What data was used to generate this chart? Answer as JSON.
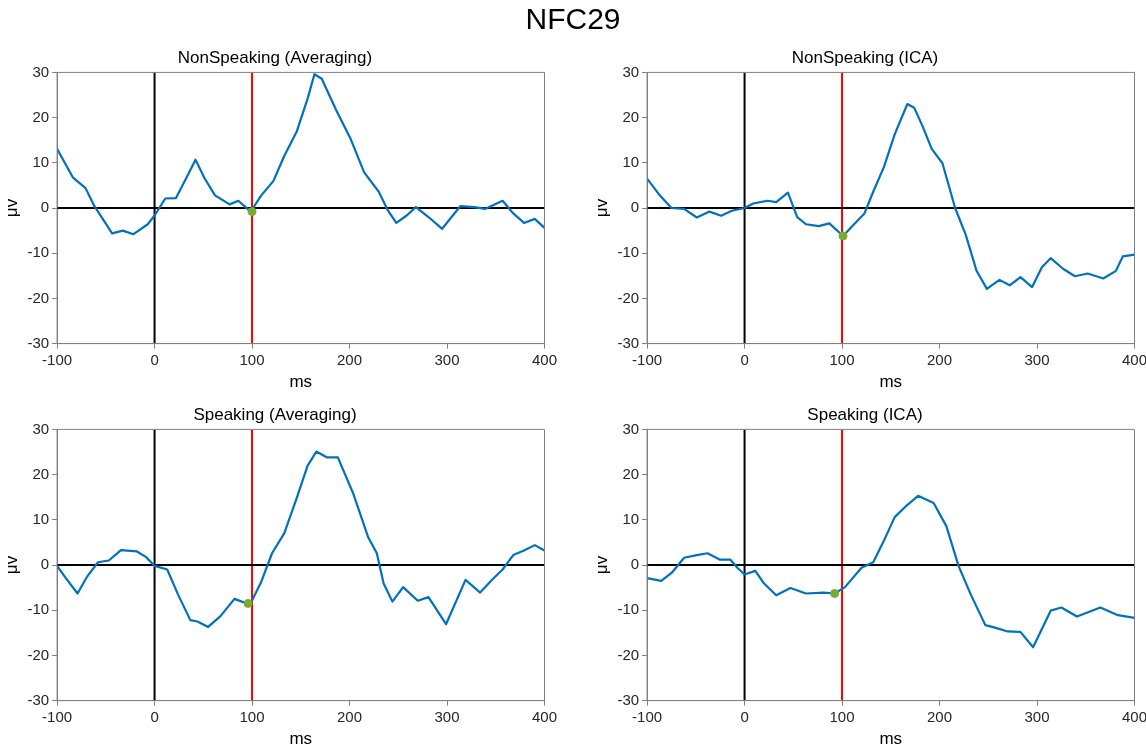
{
  "chart_data": [
    {
      "type": "other",
      "title": "NFC29"
    },
    {
      "type": "line",
      "title": "NonSpeaking (Averaging)",
      "xlabel": "ms",
      "ylabel": "μv",
      "xlim": [
        -100,
        400
      ],
      "xticks": [
        -100,
        0,
        100,
        200,
        300,
        400
      ],
      "ylim": [
        -30,
        30
      ],
      "yticks": [
        -30,
        -20,
        -10,
        0,
        10,
        20,
        30
      ],
      "grid": false,
      "legend": false,
      "marker": "none",
      "ref_lines": [
        {
          "axis": "x",
          "value": 0,
          "color": "#000000"
        },
        {
          "axis": "x",
          "value": 100,
          "color": "#ff0000"
        },
        {
          "axis": "y",
          "value": 0,
          "color": "#000000"
        }
      ],
      "series": [
        {
          "type": "line",
          "color": "#0072bd",
          "x": [
            -100,
            -83.6,
            -70.8,
            -61.7,
            -43.5,
            -32.6,
            -21.6,
            -7,
            0.2,
            11,
            22,
            31,
            42,
            51,
            62,
            77,
            86,
            98.6,
            109.5,
            122,
            133,
            146,
            157,
            164,
            171.5,
            186,
            200.7,
            215,
            230,
            239,
            248,
            259,
            268,
            281,
            295,
            313.6,
            328,
            339,
            357,
            368,
            379,
            390,
            400
          ],
          "values": [
            13.1,
            6.7,
            4.4,
            0.4,
            -5.6,
            -5,
            -5.8,
            -3.6,
            -1.6,
            2.1,
            2.2,
            6,
            10.7,
            6.7,
            2.8,
            0.8,
            1.6,
            -0.8,
            2.8,
            6,
            11.5,
            17,
            24.2,
            29.6,
            28.6,
            21.8,
            15.5,
            7.9,
            3.6,
            -0.4,
            -3.3,
            -1.6,
            0.2,
            -2,
            -4.6,
            0.4,
            0.2,
            -0.2,
            1.6,
            -1.2,
            -3.3,
            -2.4,
            -4.4
          ]
        },
        {
          "type": "scatter",
          "color": "#77ac30",
          "marker": "circle",
          "x": [
            100
          ],
          "values": [
            -0.8
          ]
        }
      ]
    },
    {
      "type": "line",
      "title": "NonSpeaking (ICA)",
      "xlabel": "ms",
      "ylabel": "μv",
      "xlim": [
        -100,
        400
      ],
      "xticks": [
        -100,
        0,
        100,
        200,
        300,
        400
      ],
      "ylim": [
        -30,
        30
      ],
      "yticks": [
        -30,
        -20,
        -10,
        0,
        10,
        20,
        30
      ],
      "grid": false,
      "legend": false,
      "marker": "none",
      "ref_lines": [
        {
          "axis": "x",
          "value": 0,
          "color": "#000000"
        },
        {
          "axis": "x",
          "value": 100,
          "color": "#ff0000"
        },
        {
          "axis": "y",
          "value": 0,
          "color": "#000000"
        }
      ],
      "series": [
        {
          "type": "line",
          "color": "#0072bd",
          "x": [
            -100,
            -87,
            -75,
            -62,
            -49,
            -36,
            -24,
            -13,
            0,
            9,
            23.5,
            32.5,
            44.5,
            54,
            63,
            76,
            87,
            101,
            110.6,
            123,
            132,
            143,
            154,
            167,
            174,
            183,
            192,
            203,
            216,
            227,
            238,
            248.6,
            261.5,
            272,
            283,
            295,
            305,
            314,
            327,
            339,
            352,
            368,
            381,
            388,
            400
          ],
          "values": [
            6.5,
            2.8,
            0,
            -0.2,
            -2.1,
            -0.8,
            -1.7,
            -0.6,
            0,
            1,
            1.6,
            1.3,
            3.4,
            -2,
            -3.6,
            -4,
            -3.4,
            -6.2,
            -4,
            -1.2,
            3.6,
            9.1,
            16.3,
            23,
            22.2,
            17.9,
            13.1,
            9.9,
            0,
            -6,
            -13.9,
            -17.9,
            -15.9,
            -17.1,
            -15.3,
            -17.5,
            -13.1,
            -11.1,
            -13.5,
            -15.1,
            -14.5,
            -15.6,
            -13.9,
            -10.7,
            -10.3
          ]
        },
        {
          "type": "scatter",
          "color": "#77ac30",
          "marker": "circle",
          "x": [
            101
          ],
          "values": [
            -6.2
          ]
        }
      ]
    },
    {
      "type": "line",
      "title": "Speaking (Averaging)",
      "xlabel": "ms",
      "ylabel": "μv",
      "xlim": [
        -100,
        400
      ],
      "xticks": [
        -100,
        0,
        100,
        200,
        300,
        400
      ],
      "ylim": [
        -30,
        30
      ],
      "yticks": [
        -30,
        -20,
        -10,
        0,
        10,
        20,
        30
      ],
      "grid": false,
      "legend": false,
      "marker": "none",
      "ref_lines": [
        {
          "axis": "x",
          "value": 0,
          "color": "#000000"
        },
        {
          "axis": "x",
          "value": 100,
          "color": "#ff0000"
        },
        {
          "axis": "y",
          "value": 0,
          "color": "#000000"
        }
      ],
      "series": [
        {
          "type": "line",
          "color": "#0072bd",
          "x": [
            -100,
            -91,
            -79,
            -69,
            -58,
            -47,
            -34.4,
            -18,
            -9,
            0.2,
            13,
            24,
            36.7,
            44,
            55,
            67.6,
            82,
            89.5,
            96,
            100.4,
            109.5,
            120.5,
            133,
            146,
            157,
            166,
            177,
            188,
            204,
            219,
            228,
            235,
            244,
            255,
            270,
            281,
            299,
            319,
            334,
            346,
            357,
            368,
            379,
            390,
            400
          ],
          "values": [
            -0.2,
            -2.9,
            -6.3,
            -2.5,
            0.6,
            1,
            3.3,
            3,
            1.8,
            -0.2,
            -1,
            -6.5,
            -12.2,
            -12.5,
            -13.7,
            -11.3,
            -7.5,
            -8.1,
            -8.5,
            -7.7,
            -3.7,
            2.6,
            7,
            14.9,
            22,
            25.1,
            23.8,
            23.8,
            15.7,
            6.2,
            2.6,
            -4.1,
            -8.1,
            -4.9,
            -7.9,
            -7.1,
            -13.1,
            -3.3,
            -6.1,
            -3.3,
            -1,
            2.2,
            3.2,
            4.4,
            3.2
          ]
        },
        {
          "type": "scatter",
          "color": "#77ac30",
          "marker": "circle",
          "x": [
            96
          ],
          "values": [
            -8.5
          ]
        }
      ]
    },
    {
      "type": "line",
      "title": "Speaking (ICA)",
      "xlabel": "ms",
      "ylabel": "μv",
      "xlim": [
        -100,
        400
      ],
      "xticks": [
        -100,
        0,
        100,
        200,
        300,
        400
      ],
      "ylim": [
        -30,
        30
      ],
      "yticks": [
        -30,
        -20,
        -10,
        0,
        10,
        20,
        30
      ],
      "grid": false,
      "legend": false,
      "marker": "none",
      "ref_lines": [
        {
          "axis": "x",
          "value": 0,
          "color": "#000000"
        },
        {
          "axis": "x",
          "value": 100,
          "color": "#ff0000"
        },
        {
          "axis": "y",
          "value": 0,
          "color": "#000000"
        }
      ],
      "series": [
        {
          "type": "line",
          "color": "#0072bd",
          "x": [
            -100,
            -85.5,
            -74.6,
            -62,
            -49,
            -38,
            -25.6,
            -14.7,
            -7.4,
            0,
            11,
            20,
            32.5,
            47,
            63,
            81,
            92.4,
            103,
            120,
            132,
            143,
            154,
            165,
            178,
            194,
            207,
            219.5,
            232,
            247,
            256,
            270,
            283,
            296,
            314,
            325,
            341,
            365,
            383,
            400
          ],
          "values": [
            -2.9,
            -3.5,
            -1.7,
            1.6,
            2.2,
            2.6,
            1.2,
            1.2,
            -0.6,
            -2.1,
            -1.3,
            -4.1,
            -6.7,
            -5.1,
            -6.3,
            -6.1,
            -6.3,
            -4.9,
            -0.6,
            0.6,
            5.4,
            10.6,
            12.9,
            15.3,
            13.7,
            8.6,
            -0.2,
            -6.5,
            -13.3,
            -13.8,
            -14.7,
            -14.8,
            -18.2,
            -10.1,
            -9.4,
            -11.4,
            -9.4,
            -11.1,
            -11.7
          ]
        },
        {
          "type": "scatter",
          "color": "#77ac30",
          "marker": "circle",
          "x": [
            92.4
          ],
          "values": [
            -6.3
          ]
        }
      ]
    }
  ]
}
